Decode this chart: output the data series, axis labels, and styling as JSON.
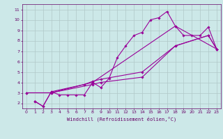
{
  "xlabel": "Windchill (Refroidissement éolien,°C)",
  "bg_color": "#cce8e8",
  "grid_color": "#b0c8c8",
  "line_color": "#990099",
  "xlim": [
    -0.5,
    23.5
  ],
  "ylim": [
    1.5,
    11.5
  ],
  "xticks": [
    0,
    1,
    2,
    3,
    4,
    5,
    6,
    7,
    8,
    9,
    10,
    11,
    12,
    13,
    14,
    15,
    16,
    17,
    18,
    19,
    20,
    21,
    22,
    23
  ],
  "yticks": [
    2,
    3,
    4,
    5,
    6,
    7,
    8,
    9,
    10,
    11
  ],
  "lines": [
    {
      "x": [
        1,
        2,
        3,
        4,
        5,
        6,
        7,
        8,
        9,
        10,
        11,
        12,
        13,
        14,
        15,
        16,
        17,
        18,
        19,
        20,
        21,
        22,
        23
      ],
      "y": [
        2.2,
        1.7,
        3.1,
        2.8,
        2.8,
        2.8,
        2.8,
        4.0,
        3.5,
        4.4,
        6.4,
        7.5,
        8.5,
        8.8,
        10.0,
        10.2,
        10.8,
        9.4,
        8.5,
        8.5,
        8.5,
        9.3,
        7.2
      ]
    },
    {
      "x": [
        0,
        3,
        8,
        9,
        14,
        18,
        22,
        23
      ],
      "y": [
        3.0,
        3.0,
        3.8,
        4.0,
        4.5,
        7.5,
        8.5,
        7.2
      ]
    },
    {
      "x": [
        1,
        2,
        3,
        7,
        8,
        9,
        14,
        18,
        22,
        23
      ],
      "y": [
        2.2,
        1.7,
        3.1,
        3.8,
        4.1,
        4.3,
        5.0,
        7.5,
        8.5,
        7.2
      ]
    },
    {
      "x": [
        0,
        3,
        8,
        18,
        23
      ],
      "y": [
        3.0,
        3.0,
        4.0,
        9.4,
        7.2
      ]
    }
  ]
}
